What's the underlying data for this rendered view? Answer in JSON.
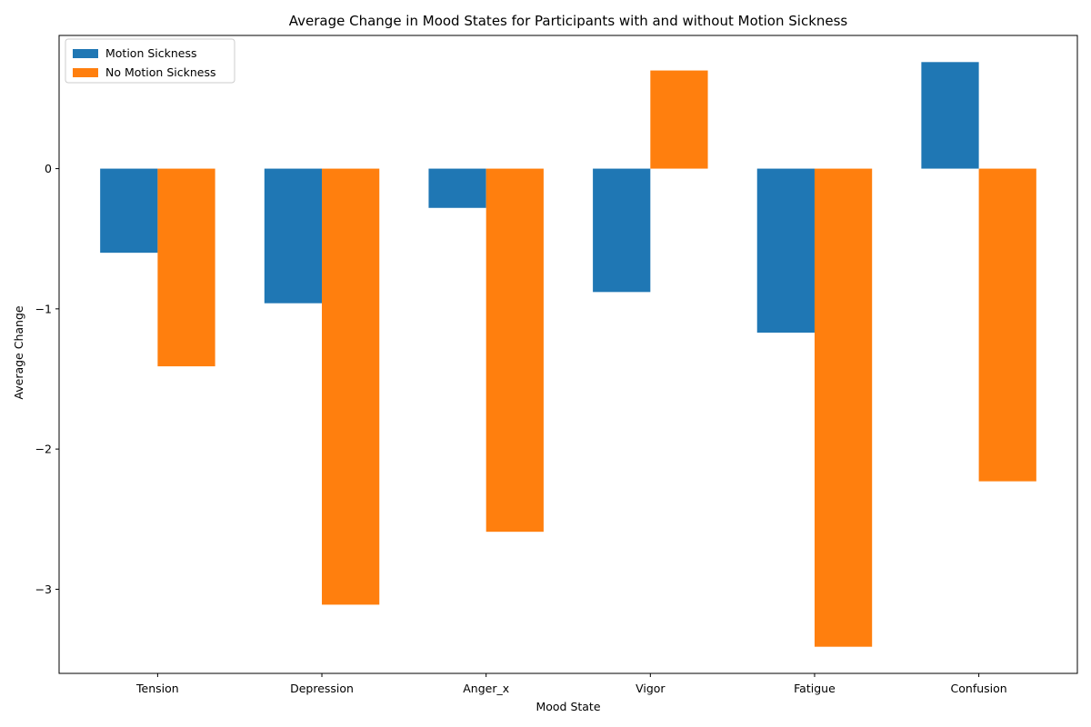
{
  "chart_data": {
    "type": "bar",
    "title": "Average Change in Mood States for Participants with and without Motion Sickness",
    "xlabel": "Mood State",
    "ylabel": "Average Change",
    "categories": [
      "Tension",
      "Depression",
      "Anger_x",
      "Vigor",
      "Fatigue",
      "Confusion"
    ],
    "series": [
      {
        "name": "Motion Sickness",
        "color": "#1f77b4",
        "values": [
          -0.6,
          -0.96,
          -0.28,
          -0.88,
          -1.17,
          0.76
        ]
      },
      {
        "name": "No Motion Sickness",
        "color": "#ff7f0e",
        "values": [
          -1.41,
          -3.11,
          -2.59,
          0.7,
          -3.41,
          -2.23
        ]
      }
    ],
    "ylim": [
      -3.6,
      0.95
    ],
    "yticks": [
      0,
      -1,
      -2,
      -3
    ],
    "ytick_labels": [
      "0",
      "−1",
      "−2",
      "−3"
    ],
    "grid": false,
    "legend": "top-left"
  }
}
